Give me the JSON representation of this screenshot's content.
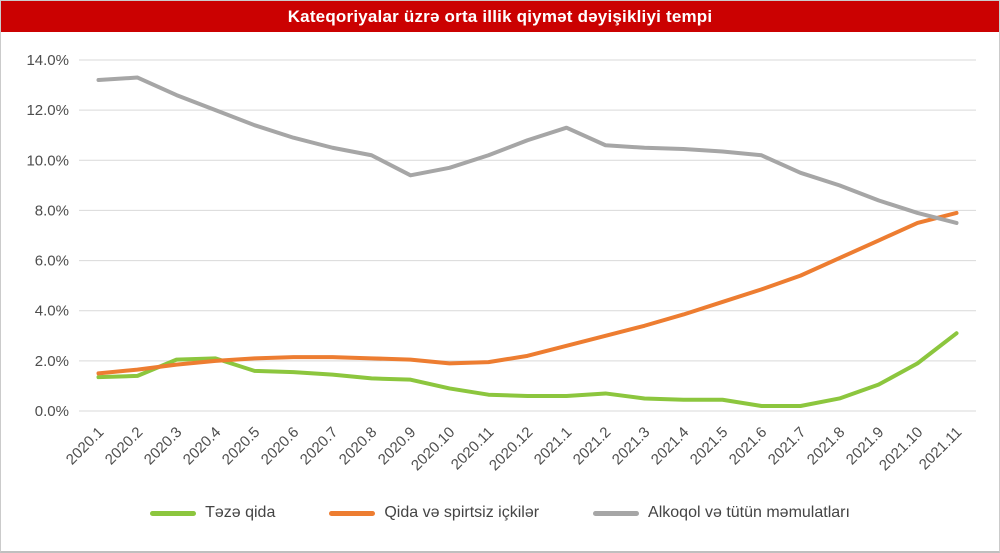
{
  "title": "Kateqoriyalar üzrə orta illik qiymət dəyişikliyi tempi",
  "colors": {
    "banner": "#CB0101",
    "title_text": "#FFFFFF",
    "gridline": "#D9D9D9",
    "axis_text": "#4D4D4D",
    "legend_text": "#444444",
    "green": "#8CC63E",
    "orange": "#ED7D31",
    "gray": "#A6A6A6"
  },
  "chart_data": {
    "type": "line",
    "title": "Kateqoriyalar üzrə orta illik qiymət dəyişikliyi tempi",
    "xlabel": "",
    "ylabel": "",
    "ylim": [
      0,
      14
    ],
    "y_tick_step": 2,
    "grid": true,
    "legend_position": "bottom",
    "y_ticks": [
      "0.0%",
      "2.0%",
      "4.0%",
      "6.0%",
      "8.0%",
      "10.0%",
      "12.0%",
      "14.0%"
    ],
    "categories": [
      "2020.1",
      "2020.2",
      "2020.3",
      "2020.4",
      "2020.5",
      "2020.6",
      "2020.7",
      "2020.8",
      "2020.9",
      "2020.10",
      "2020.11",
      "2020.12",
      "2021.1",
      "2021.2",
      "2021.3",
      "2021.4",
      "2021.5",
      "2021.6",
      "2021.7",
      "2021.8",
      "2021.9",
      "2021.10",
      "2021.11"
    ],
    "unit": "%",
    "series": [
      {
        "name": "Təzə qida",
        "slug": "teze-qida",
        "color": "#8CC63E",
        "values": [
          1.35,
          1.4,
          2.05,
          2.1,
          1.6,
          1.55,
          1.45,
          1.3,
          1.25,
          0.9,
          0.65,
          0.6,
          0.6,
          0.7,
          0.5,
          0.45,
          0.45,
          0.2,
          0.2,
          0.5,
          1.05,
          1.9,
          3.1
        ]
      },
      {
        "name": "Qida və spirtsiz içkilər",
        "slug": "qida-ve-spirtsiz-ickiler",
        "color": "#ED7D31",
        "values": [
          1.5,
          1.65,
          1.85,
          2.0,
          2.1,
          2.15,
          2.15,
          2.1,
          2.05,
          1.9,
          1.95,
          2.2,
          2.6,
          3.0,
          3.4,
          3.85,
          4.35,
          4.85,
          5.4,
          6.1,
          6.8,
          7.5,
          7.9
        ]
      },
      {
        "name": "Alkoqol və tütün məmulatları",
        "slug": "alkoqol-ve-tutun-memulatlari",
        "color": "#A6A6A6",
        "values": [
          13.2,
          13.3,
          12.6,
          12.0,
          11.4,
          10.9,
          10.5,
          10.2,
          9.4,
          9.7,
          10.2,
          10.8,
          11.3,
          10.6,
          10.5,
          10.45,
          10.35,
          10.2,
          9.5,
          9.0,
          8.4,
          7.9,
          7.5
        ]
      }
    ]
  }
}
